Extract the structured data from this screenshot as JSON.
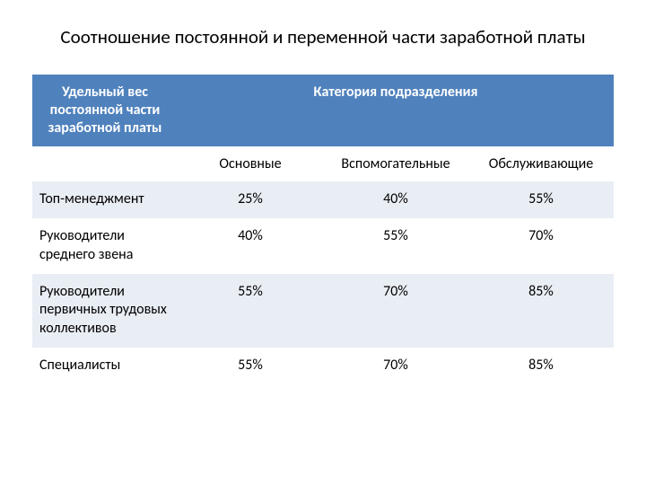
{
  "title": "Соотношение постоянной и переменной части заработной платы",
  "table": {
    "type": "table",
    "background_color": "#ffffff",
    "header_bg": "#4f81bd",
    "header_text_color": "#ffffff",
    "row_alt_bg": "#e9edf4",
    "row_plain_bg": "#ffffff",
    "text_color": "#000000",
    "fontsize": 16,
    "title_fontsize": 21,
    "col_widths": [
      "25%",
      "25%",
      "25%",
      "25%"
    ],
    "header_left": "Удельный вес постоянной части заработной платы",
    "header_category": "Категория подразделения",
    "subheaders": [
      "Основные",
      "Вспомогательные",
      "Обслуживающие"
    ],
    "rows": [
      {
        "label": "Топ-менеджмент",
        "values": [
          "25%",
          "40%",
          "55%"
        ]
      },
      {
        "label": "Руководители среднего звена",
        "values": [
          "40%",
          "55%",
          "70%"
        ]
      },
      {
        "label": "Руководители первичных трудовых коллективов",
        "values": [
          "55%",
          "70%",
          "85%"
        ]
      },
      {
        "label": "Специалисты",
        "values": [
          "55%",
          "70%",
          "85%"
        ]
      }
    ]
  }
}
